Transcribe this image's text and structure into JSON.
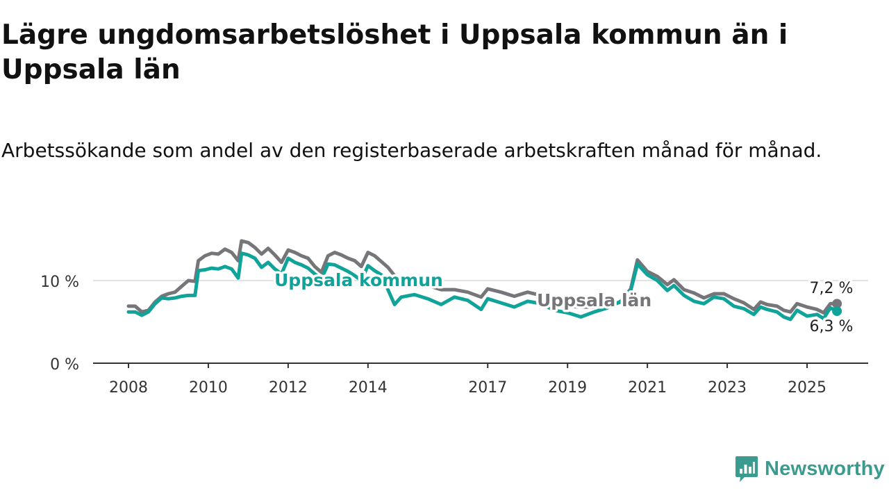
{
  "title": "Lägre ungdomsarbetslöshet i Uppsala kommun än i Uppsala län",
  "subtitle": "Arbetssökande som andel av den registerbaserade arbetskraften månad för månad.",
  "brand": "Newsworthy",
  "colors": {
    "kommun": "#0fa39a",
    "lan": "#76767a",
    "grid": "#d9d9d9",
    "axis": "#333333",
    "brand": "#3a9b8e"
  },
  "chart_data": {
    "type": "line",
    "yticks": [
      {
        "value": 0,
        "label": "0 %"
      },
      {
        "value": 10,
        "label": "10 %"
      }
    ],
    "xticks": [
      {
        "year": 2008,
        "label": "2008"
      },
      {
        "year": 2010,
        "label": "2010"
      },
      {
        "year": 2012,
        "label": "2012"
      },
      {
        "year": 2014,
        "label": "2014"
      },
      {
        "year": 2017,
        "label": "2017"
      },
      {
        "year": 2019,
        "label": "2019"
      },
      {
        "year": 2021,
        "label": "2021"
      },
      {
        "year": 2023,
        "label": "2023"
      },
      {
        "year": 2025,
        "label": "2025"
      }
    ],
    "xlim": [
      "2007-01",
      "2026-12"
    ],
    "ylim": [
      0,
      15
    ],
    "grid": "horizontal",
    "end_labels": {
      "lan": "7,2 %",
      "kommun": "6,3 %"
    },
    "series": [
      {
        "key": "lan",
        "name": "Uppsala län",
        "points": [
          [
            "2008-01",
            6.9
          ],
          [
            "2008-03",
            6.9
          ],
          [
            "2008-05",
            6.2
          ],
          [
            "2008-07",
            6.4
          ],
          [
            "2008-09",
            7.4
          ],
          [
            "2008-11",
            8.1
          ],
          [
            "2009-01",
            8.4
          ],
          [
            "2009-03",
            8.6
          ],
          [
            "2009-05",
            9.3
          ],
          [
            "2009-07",
            10.0
          ],
          [
            "2009-09",
            9.9
          ],
          [
            "2009-10",
            12.4
          ],
          [
            "2009-12",
            13.0
          ],
          [
            "2010-02",
            13.3
          ],
          [
            "2010-04",
            13.2
          ],
          [
            "2010-06",
            13.8
          ],
          [
            "2010-08",
            13.4
          ],
          [
            "2010-10",
            12.4
          ],
          [
            "2010-11",
            14.8
          ],
          [
            "2011-01",
            14.6
          ],
          [
            "2011-03",
            14.0
          ],
          [
            "2011-05",
            13.2
          ],
          [
            "2011-07",
            13.9
          ],
          [
            "2011-09",
            13.1
          ],
          [
            "2011-11",
            12.2
          ],
          [
            "2012-01",
            13.7
          ],
          [
            "2012-03",
            13.4
          ],
          [
            "2012-05",
            13.0
          ],
          [
            "2012-07",
            12.7
          ],
          [
            "2012-09",
            11.7
          ],
          [
            "2012-11",
            11.0
          ],
          [
            "2013-01",
            13.0
          ],
          [
            "2013-03",
            13.4
          ],
          [
            "2013-05",
            13.1
          ],
          [
            "2013-07",
            12.7
          ],
          [
            "2013-09",
            12.4
          ],
          [
            "2013-11",
            11.7
          ],
          [
            "2014-01",
            13.4
          ],
          [
            "2014-03",
            13.0
          ],
          [
            "2014-05",
            12.3
          ],
          [
            "2014-07",
            11.6
          ],
          [
            "2014-09",
            10.6
          ],
          [
            "2014-11",
            9.7
          ],
          [
            "2015-03",
            9.8
          ],
          [
            "2015-07",
            9.4
          ],
          [
            "2015-11",
            8.9
          ],
          [
            "2016-03",
            8.9
          ],
          [
            "2016-07",
            8.6
          ],
          [
            "2016-11",
            8.0
          ],
          [
            "2017-01",
            9.0
          ],
          [
            "2017-05",
            8.6
          ],
          [
            "2017-09",
            8.1
          ],
          [
            "2018-01",
            8.6
          ],
          [
            "2018-05",
            8.2
          ],
          [
            "2018-09",
            7.3
          ],
          [
            "2019-01",
            6.9
          ],
          [
            "2019-05",
            6.8
          ],
          [
            "2019-09",
            6.8
          ],
          [
            "2020-01",
            6.9
          ],
          [
            "2020-05",
            7.4
          ],
          [
            "2020-08",
            9.0
          ],
          [
            "2020-10",
            12.5
          ],
          [
            "2021-01",
            11.1
          ],
          [
            "2021-04",
            10.5
          ],
          [
            "2021-07",
            9.5
          ],
          [
            "2021-09",
            10.1
          ],
          [
            "2021-12",
            8.9
          ],
          [
            "2022-03",
            8.5
          ],
          [
            "2022-06",
            7.9
          ],
          [
            "2022-09",
            8.4
          ],
          [
            "2022-12",
            8.4
          ],
          [
            "2023-03",
            7.8
          ],
          [
            "2023-06",
            7.3
          ],
          [
            "2023-09",
            6.5
          ],
          [
            "2023-11",
            7.4
          ],
          [
            "2024-01",
            7.1
          ],
          [
            "2024-04",
            6.9
          ],
          [
            "2024-06",
            6.4
          ],
          [
            "2024-08",
            6.2
          ],
          [
            "2024-10",
            7.2
          ],
          [
            "2025-01",
            6.8
          ],
          [
            "2025-04",
            6.5
          ],
          [
            "2025-06",
            6.1
          ],
          [
            "2025-08",
            7.2
          ],
          [
            "2025-10",
            7.2
          ]
        ]
      },
      {
        "key": "kommun",
        "name": "Uppsala kommun",
        "points": [
          [
            "2008-01",
            6.2
          ],
          [
            "2008-03",
            6.2
          ],
          [
            "2008-05",
            5.8
          ],
          [
            "2008-07",
            6.2
          ],
          [
            "2008-09",
            7.2
          ],
          [
            "2008-11",
            7.9
          ],
          [
            "2009-01",
            7.8
          ],
          [
            "2009-03",
            7.9
          ],
          [
            "2009-05",
            8.1
          ],
          [
            "2009-07",
            8.2
          ],
          [
            "2009-09",
            8.2
          ],
          [
            "2009-10",
            11.2
          ],
          [
            "2009-12",
            11.3
          ],
          [
            "2010-02",
            11.5
          ],
          [
            "2010-04",
            11.4
          ],
          [
            "2010-06",
            11.7
          ],
          [
            "2010-08",
            11.4
          ],
          [
            "2010-10",
            10.3
          ],
          [
            "2010-11",
            13.3
          ],
          [
            "2011-01",
            13.1
          ],
          [
            "2011-03",
            12.7
          ],
          [
            "2011-05",
            11.6
          ],
          [
            "2011-07",
            12.2
          ],
          [
            "2011-09",
            11.4
          ],
          [
            "2011-11",
            10.8
          ],
          [
            "2012-01",
            12.7
          ],
          [
            "2012-03",
            12.2
          ],
          [
            "2012-05",
            11.9
          ],
          [
            "2012-07",
            11.5
          ],
          [
            "2012-09",
            10.8
          ],
          [
            "2012-11",
            10.2
          ],
          [
            "2013-01",
            12.0
          ],
          [
            "2013-03",
            11.9
          ],
          [
            "2013-05",
            11.5
          ],
          [
            "2013-07",
            11.1
          ],
          [
            "2013-09",
            10.6
          ],
          [
            "2013-11",
            10.0
          ],
          [
            "2014-01",
            11.8
          ],
          [
            "2014-03",
            11.2
          ],
          [
            "2014-05",
            10.7
          ],
          [
            "2014-07",
            8.9
          ],
          [
            "2014-09",
            7.1
          ],
          [
            "2014-11",
            8.0
          ],
          [
            "2015-03",
            8.3
          ],
          [
            "2015-07",
            7.8
          ],
          [
            "2015-11",
            7.1
          ],
          [
            "2016-03",
            8.0
          ],
          [
            "2016-07",
            7.6
          ],
          [
            "2016-11",
            6.5
          ],
          [
            "2017-01",
            7.8
          ],
          [
            "2017-05",
            7.3
          ],
          [
            "2017-09",
            6.8
          ],
          [
            "2018-01",
            7.5
          ],
          [
            "2018-05",
            7.2
          ],
          [
            "2018-09",
            6.4
          ],
          [
            "2019-01",
            6.1
          ],
          [
            "2019-05",
            5.6
          ],
          [
            "2019-09",
            6.2
          ],
          [
            "2020-01",
            6.7
          ],
          [
            "2020-05",
            7.5
          ],
          [
            "2020-08",
            8.8
          ],
          [
            "2020-10",
            12.0
          ],
          [
            "2021-01",
            10.7
          ],
          [
            "2021-04",
            10.0
          ],
          [
            "2021-07",
            8.8
          ],
          [
            "2021-09",
            9.4
          ],
          [
            "2021-12",
            8.2
          ],
          [
            "2022-03",
            7.5
          ],
          [
            "2022-06",
            7.2
          ],
          [
            "2022-09",
            8.0
          ],
          [
            "2022-12",
            7.8
          ],
          [
            "2023-03",
            6.9
          ],
          [
            "2023-06",
            6.6
          ],
          [
            "2023-09",
            5.9
          ],
          [
            "2023-11",
            6.8
          ],
          [
            "2024-01",
            6.5
          ],
          [
            "2024-04",
            6.2
          ],
          [
            "2024-06",
            5.6
          ],
          [
            "2024-08",
            5.3
          ],
          [
            "2024-10",
            6.4
          ],
          [
            "2025-01",
            5.7
          ],
          [
            "2025-04",
            5.9
          ],
          [
            "2025-06",
            5.4
          ],
          [
            "2025-08",
            6.7
          ],
          [
            "2025-10",
            6.3
          ]
        ]
      }
    ]
  }
}
